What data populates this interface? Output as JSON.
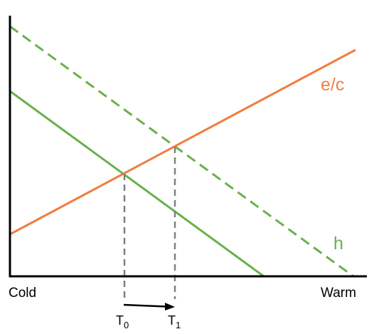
{
  "diagram": {
    "x_axis": {
      "left_label": "Cold",
      "right_label": "Warm"
    },
    "lines": [
      {
        "id": "ec",
        "label": "e/c",
        "color": "#f07d42",
        "style": "solid"
      },
      {
        "id": "h",
        "label": "h",
        "color": "#6ab04c",
        "style": "solid"
      },
      {
        "id": "h-shifted",
        "label": "",
        "color": "#6ab04c",
        "style": "dashed"
      }
    ],
    "markers": [
      {
        "base": "T",
        "sub": "0"
      },
      {
        "base": "T",
        "sub": "1"
      }
    ],
    "guide_color": "#808080",
    "axis_color": "#000000"
  }
}
